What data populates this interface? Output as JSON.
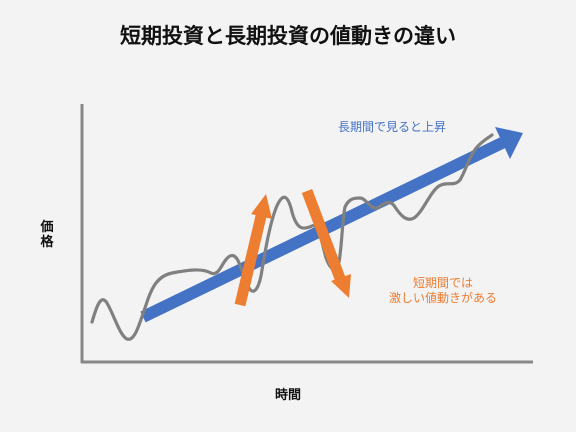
{
  "title": "短期投資と長期投資の値動きの違い",
  "axes": {
    "y_label": "価格",
    "x_label": "時間"
  },
  "annotations": {
    "long_term": "長期間で見ると上昇",
    "short_term_line1": "短期間では",
    "short_term_line2": "激しい値動きがある"
  },
  "colors": {
    "long_term_arrow": "#4472c4",
    "short_term_arrows": "#ed7d31",
    "price_line": "#808080",
    "axis": "#888888"
  }
}
